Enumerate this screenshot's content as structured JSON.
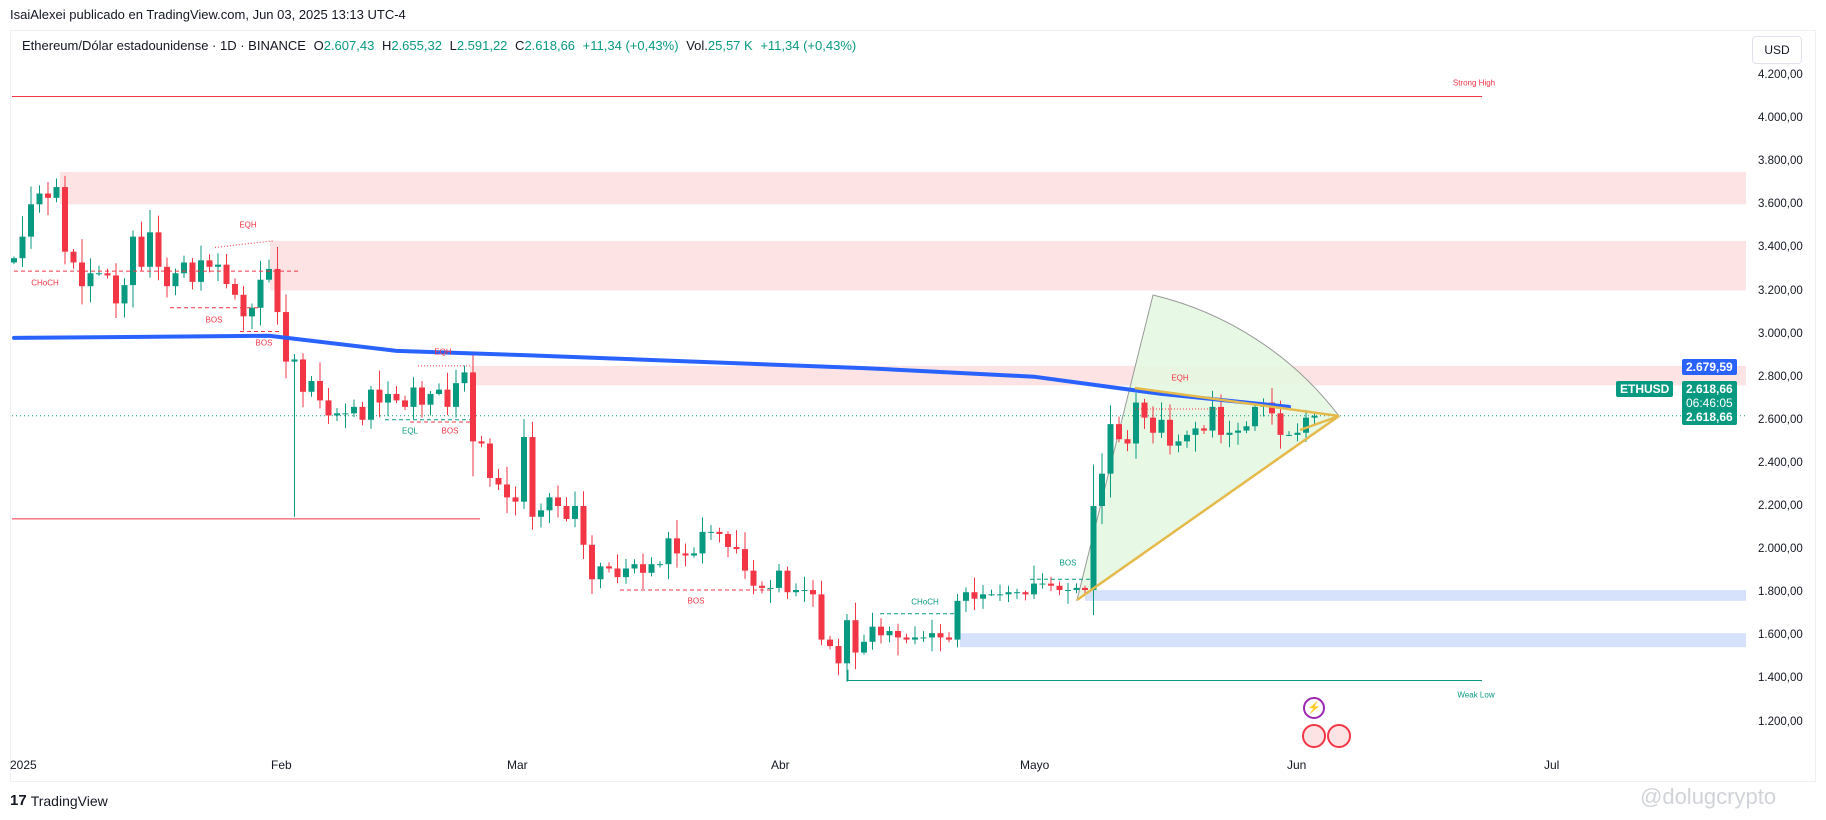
{
  "header": {
    "published": "IsaiAlexei publicado en TradingView.com, Jun 03, 2025 13:13 UTC-4"
  },
  "legend": {
    "symbol": "Ethereum/Dólar estadounidense · 1D · BINANCE",
    "o_label": "O",
    "o": "2.607,43",
    "h_label": "H",
    "h": "2.655,32",
    "l_label": "L",
    "l": "2.591,22",
    "c_label": "C",
    "c": "2.618,66",
    "change": "+11,34 (+0,43%)",
    "vol_label": "Vol.",
    "vol": "25,57 K",
    "vol_change": "+11,34 (+0,43%)"
  },
  "currency_button": "USD",
  "price_axis": [
    "4.200,00",
    "4.000,00",
    "3.800,00",
    "3.600,00",
    "3.400,00",
    "3.200,00",
    "3.000,00",
    "2.800,00",
    "2.600,00",
    "2.400,00",
    "2.200,00",
    "2.000,00",
    "1.800,00",
    "1.600,00",
    "1.400,00",
    "1.200,00"
  ],
  "tags": {
    "ema": "2.679,59",
    "symbol": "ETHUSD",
    "last": "2.618,66",
    "countdown": "06:46:05",
    "last2": "2.618,66"
  },
  "time_axis": [
    "2025",
    "Feb",
    "Mar",
    "Abr",
    "Mayo",
    "Jun",
    "Jul"
  ],
  "annotations": {
    "strong_high": "Strong High",
    "weak_low": "Weak Low",
    "eqh1": "EQH",
    "eqh2": "EQH",
    "eqh3": "EQH",
    "choch1": "CHoCH",
    "choch2": "CHoCH",
    "bos1": "BOS",
    "bos2": "BOS",
    "bos3": "BOS",
    "bos4": "BOS",
    "bos5": "BOS",
    "eql": "EQL"
  },
  "footer": {
    "logo": "TradingView",
    "watermark": "@dolugcrypto"
  },
  "colors": {
    "up": "#089981",
    "down": "#f23645",
    "ema": "#2962ff",
    "zone_supply": "#fde3e4",
    "zone_demand": "#d6e2fc",
    "fan": "#e3f8e1",
    "wedge": "#e5b94a"
  },
  "chart_data": {
    "type": "candlestick",
    "symbol": "ETHUSD",
    "interval": "1D",
    "start_date": "2025-01-01",
    "first_open": 3330,
    "closes": [
      3350,
      3450,
      3600,
      3650,
      3630,
      3680,
      3380,
      3330,
      3220,
      3280,
      3280,
      3270,
      3140,
      3225,
      3450,
      3310,
      3470,
      3310,
      3220,
      3280,
      3330,
      3240,
      3340,
      3310,
      3320,
      3230,
      3180,
      3080,
      3120,
      3250,
      3300,
      3100,
      2870,
      2880,
      2730,
      2780,
      2690,
      2620,
      2630,
      2630,
      2660,
      2600,
      2740,
      2680,
      2720,
      2690,
      2660,
      2750,
      2670,
      2720,
      2740,
      2660,
      2770,
      2820,
      2500,
      2490,
      2330,
      2300,
      2240,
      2220,
      2520,
      2150,
      2180,
      2240,
      2200,
      2140,
      2200,
      2020,
      1860,
      1920,
      1910,
      1870,
      1910,
      1930,
      1890,
      1930,
      1930,
      2050,
      1980,
      1970,
      1980,
      2080,
      2080,
      2070,
      2010,
      2000,
      1900,
      1830,
      1820,
      1820,
      1900,
      1800,
      1810,
      1810,
      1790,
      1580,
      1550,
      1470,
      1670,
      1520,
      1570,
      1640,
      1600,
      1620,
      1590,
      1580,
      1590,
      1590,
      1610,
      1590,
      1580,
      1760,
      1800,
      1770,
      1790,
      1790,
      1790,
      1800,
      1800,
      1790,
      1840,
      1840,
      1830,
      1810,
      1810,
      1820,
      1810,
      2200,
      2350,
      2580,
      2510,
      2490,
      2680,
      2610,
      2540,
      2600,
      2480,
      2500,
      2530,
      2560,
      2550,
      2660,
      2530,
      2540,
      2550,
      2570,
      2660,
      2680,
      2630,
      2530,
      2530,
      2540,
      2610,
      2618.66
    ],
    "ema": [
      [
        0,
        2980
      ],
      [
        30,
        2990
      ],
      [
        45,
        2920
      ],
      [
        60,
        2900
      ],
      [
        80,
        2870
      ],
      [
        100,
        2840
      ],
      [
        120,
        2800
      ],
      [
        135,
        2720
      ],
      [
        150,
        2660
      ]
    ],
    "levels": {
      "strong_high": 4100,
      "weak_low": 1390,
      "support": 2140
    },
    "zones": [
      [
        3600,
        3750
      ],
      [
        3200,
        3430
      ],
      [
        2760,
        2850
      ],
      [
        1760,
        1810
      ],
      [
        1545,
        1610
      ]
    ],
    "ylim": [
      1100,
      4300
    ]
  }
}
